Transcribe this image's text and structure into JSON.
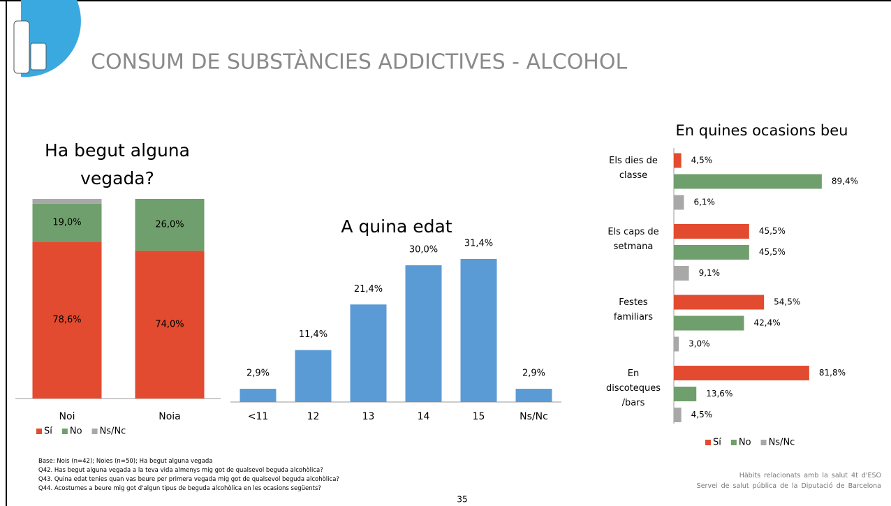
{
  "slide_title": "CONSUM DE SUBSTÀNCIES ADDICTIVES - ALCOHOL",
  "footnotes": [
    "Base: Nois (n=42); Noies (n=50); Ha begut alguna vegada",
    "Q42. Has begut alguna vegada a la teva vida almenys mig got de qualsevol beguda alcohòlica?",
    "Q43. Quina edat tenies quan vas beure per primera vegada mig got de qualsevol beguda alcohòlica?",
    "Q44. Acostumes a beure mig got d'algun tipus de beguda alcohòlica en les ocasions següents?"
  ],
  "page_number": "35",
  "footer": [
    "Hàbits relacionats amb la salut 4t d'ESO",
    "Servei de salut pública de la Diputació de Barcelona"
  ],
  "chart_data": [
    {
      "type": "stacked_bar",
      "title": "Ha begut alguna vegada?",
      "categories": [
        "Noi",
        "Noia"
      ],
      "series": [
        {
          "name": "Sí",
          "color": "#e24b2f",
          "values": [
            78.6,
            74.0
          ],
          "value_labels": [
            "78,6%",
            "74,0%"
          ]
        },
        {
          "name": "No",
          "color": "#6f9f6c",
          "values": [
            19.0,
            26.0
          ],
          "value_labels": [
            "19,0%",
            "26,0%"
          ]
        },
        {
          "name": "Ns/Nc",
          "color": "#a8a8a8",
          "values": [
            2.4,
            0
          ]
        }
      ]
    },
    {
      "type": "bar",
      "title": "A quina edat",
      "categories": [
        "<11",
        "12",
        "13",
        "14",
        "15",
        "Ns/Nc"
      ],
      "values": [
        2.9,
        11.4,
        21.4,
        30.0,
        31.4,
        2.9
      ],
      "value_labels": [
        "2,9%",
        "11,4%",
        "21,4%",
        "30,0%",
        "31,4%",
        "2,9%"
      ],
      "color": "#5b9bd5"
    },
    {
      "type": "grouped_hbar",
      "title": "En quines ocasions beu",
      "categories": [
        "Els dies de classe",
        "Els caps de setmana",
        "Festes familiars",
        "En discoteques /bars"
      ],
      "series": [
        {
          "name": "Sí",
          "color": "#e24b2f",
          "values": [
            4.5,
            45.5,
            54.5,
            81.8
          ],
          "value_labels": [
            "4,5%",
            "45,5%",
            "54,5%",
            "81,8%"
          ]
        },
        {
          "name": "No",
          "color": "#6f9f6c",
          "values": [
            89.4,
            45.5,
            42.4,
            13.6
          ],
          "value_labels": [
            "89,4%",
            "45,5%",
            "42,4%",
            "13,6%"
          ]
        },
        {
          "name": "Ns/Nc",
          "color": "#a8a8a8",
          "values": [
            6.1,
            9.1,
            3.0,
            4.5
          ],
          "value_labels": [
            "6,1%",
            "9,1%",
            "3,0%",
            "4,5%"
          ]
        }
      ]
    }
  ]
}
